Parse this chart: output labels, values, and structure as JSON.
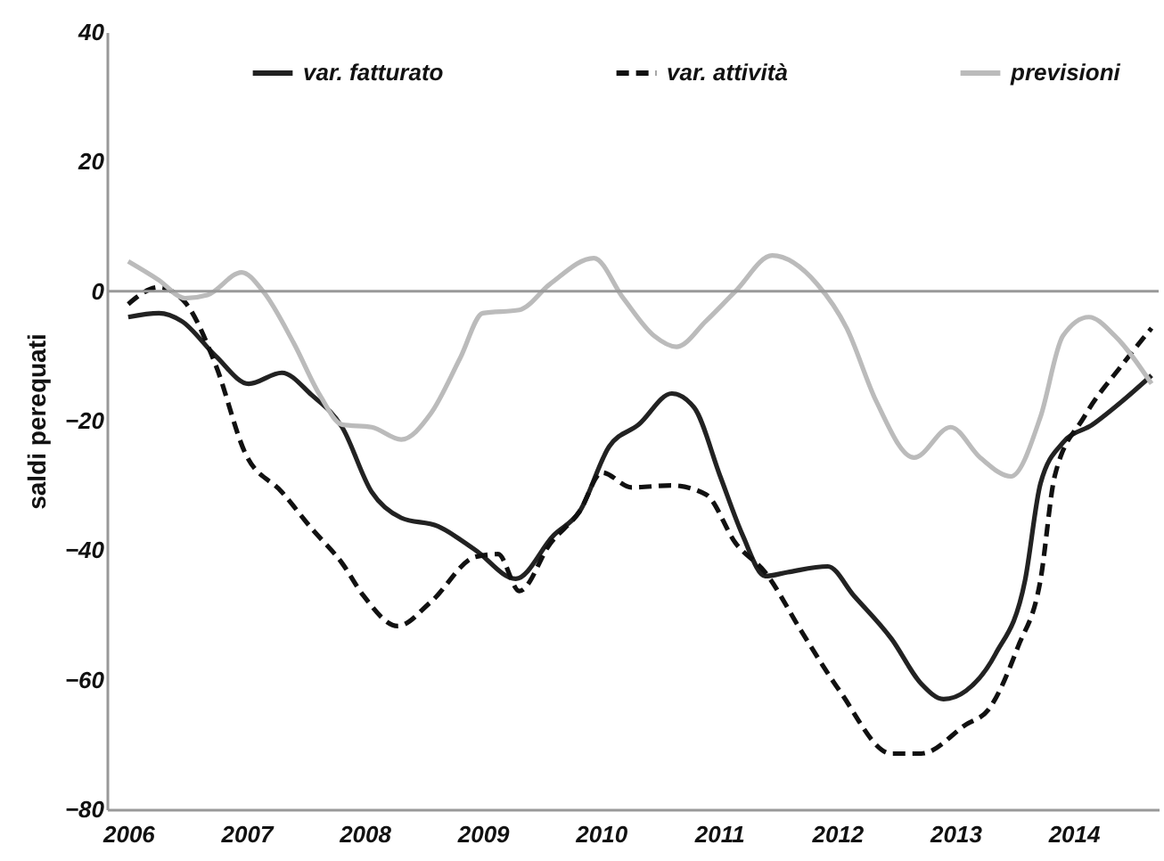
{
  "chart_data": {
    "type": "line",
    "ylabel": "saldi perequati",
    "xlim": [
      2005.82,
      2014.72
    ],
    "xticks": [
      2006,
      2007,
      2008,
      2009,
      2010,
      2011,
      2012,
      2013,
      2014
    ],
    "ylim": [
      -80,
      40
    ],
    "yticks": [
      -80,
      -60,
      -40,
      -20,
      0,
      20,
      40
    ],
    "legend": "top",
    "grid": false,
    "ref_lines": [
      {
        "axis": "y",
        "value": 0
      }
    ],
    "series": [
      {
        "name": "var. fatturato",
        "color": "#222222",
        "line_style": "solid",
        "x": [
          2006.0,
          2006.26,
          2006.45,
          2006.74,
          2007.02,
          2007.3,
          2007.55,
          2007.81,
          2008.06,
          2008.31,
          2008.62,
          2008.94,
          2009.28,
          2009.6,
          2009.82,
          2010.07,
          2010.32,
          2010.6,
          2010.79,
          2011.01,
          2011.2,
          2011.39,
          2011.58,
          2011.92,
          2012.14,
          2012.46,
          2012.71,
          2012.9,
          2013.09,
          2013.34,
          2013.59,
          2013.72,
          2013.91,
          2014.16,
          2014.41,
          2014.66
        ],
        "values": [
          -4,
          -3.4,
          -4.6,
          -10,
          -14.3,
          -12.6,
          -16,
          -21,
          -31,
          -35,
          -36.3,
          -40,
          -44.4,
          -37.7,
          -34,
          -24,
          -20.6,
          -15.8,
          -18,
          -28.6,
          -37.7,
          -44,
          -43.4,
          -42.5,
          -47,
          -53.7,
          -60.6,
          -63,
          -61.7,
          -56,
          -44.6,
          -29.7,
          -23.4,
          -20.6,
          -17,
          -13
        ]
      },
      {
        "name": "var. attività",
        "color": "#111111",
        "line_style": "dashed",
        "x": [
          2006.0,
          2006.26,
          2006.48,
          2006.74,
          2006.99,
          2007.3,
          2007.55,
          2007.81,
          2007.99,
          2008.28,
          2008.56,
          2008.94,
          2009.13,
          2009.31,
          2009.57,
          2009.82,
          2010.01,
          2010.26,
          2010.6,
          2010.89,
          2011.14,
          2011.39,
          2011.7,
          2012.02,
          2012.46,
          2012.71,
          2013.09,
          2013.28,
          2013.53,
          2013.72,
          2013.84,
          2014.09,
          2014.41,
          2014.66
        ],
        "values": [
          -2,
          0.6,
          -1.7,
          -11.4,
          -25,
          -31,
          -36.6,
          -42,
          -47,
          -51.7,
          -48,
          -41,
          -40.6,
          -46.3,
          -39,
          -34,
          -28,
          -30.3,
          -30,
          -31.4,
          -38.9,
          -43.4,
          -52.6,
          -61.7,
          -71.4,
          -71.4,
          -66.9,
          -64.6,
          -54.9,
          -44.6,
          -28.6,
          -19.4,
          -11.4,
          -5.7
        ]
      },
      {
        "name": "previsioni",
        "color": "#bbbbbb",
        "line_style": "solid",
        "x": [
          2006.0,
          2006.26,
          2006.48,
          2006.67,
          2006.96,
          2007.14,
          2007.4,
          2007.62,
          2007.81,
          2008.06,
          2008.31,
          2008.56,
          2008.81,
          2009.0,
          2009.31,
          2009.57,
          2009.94,
          2010.19,
          2010.45,
          2010.64,
          2010.89,
          2011.14,
          2011.45,
          2011.83,
          2012.08,
          2012.33,
          2012.65,
          2012.96,
          2013.21,
          2013.47,
          2013.72,
          2013.91,
          2014.13,
          2014.35,
          2014.66
        ],
        "values": [
          4.6,
          1.7,
          -1.1,
          -0.6,
          2.9,
          0,
          -8,
          -16,
          -20.6,
          -21,
          -22.9,
          -18.9,
          -10.3,
          -3.4,
          -2.9,
          1.1,
          5.1,
          -1.1,
          -6.9,
          -8.6,
          -4.6,
          0,
          5.5,
          1.1,
          -5.7,
          -17,
          -25.7,
          -21,
          -25.7,
          -28.6,
          -19.4,
          -6.9,
          -4,
          -6.9,
          -14.3
        ]
      }
    ]
  }
}
